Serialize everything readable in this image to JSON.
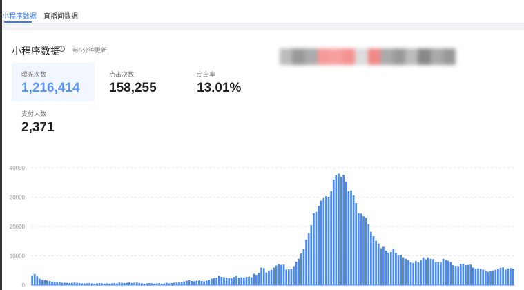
{
  "tabs": [
    {
      "label": "小程序数据",
      "active": true
    },
    {
      "label": "直播间数据",
      "active": false
    }
  ],
  "section": {
    "title": "小程序数据",
    "info_icon": "info-circle-icon",
    "subtitle": "每5分钟更新"
  },
  "metrics": [
    {
      "label": "曝光次数",
      "value": "1,216,414",
      "selected": true
    },
    {
      "label": "点击次数",
      "value": "158,255"
    },
    {
      "label": "点击率",
      "value": "13.01%"
    },
    {
      "label": "支付人数",
      "value": "2,371"
    }
  ],
  "colors": {
    "accent": "#3a7bf0",
    "bar": "#4a8af0"
  },
  "chart_data": {
    "type": "bar",
    "ylim": [
      0,
      40000
    ],
    "yticks": [
      "0",
      "10000",
      "20000",
      "30000",
      "40000"
    ],
    "grid": true,
    "values": [
      3300,
      3800,
      3000,
      2200,
      1800,
      1700,
      1600,
      1400,
      1200,
      1100,
      1000,
      1200,
      800,
      800,
      800,
      700,
      800,
      900,
      800,
      700,
      600,
      600,
      600,
      700,
      600,
      500,
      600,
      700,
      600,
      500,
      600,
      500,
      600,
      700,
      600,
      900,
      800,
      700,
      800,
      900,
      700,
      800,
      900,
      700,
      600,
      500,
      600,
      700,
      600,
      500,
      600,
      700,
      500,
      600,
      800,
      600,
      700,
      800,
      900,
      1000,
      1100,
      1300,
      1500,
      1700,
      1400,
      1300,
      1500,
      1600,
      1400,
      1300,
      1500,
      1800,
      2200,
      2400,
      2600,
      3200,
      2800,
      2700,
      2600,
      2400,
      2300,
      2800,
      3300,
      2500,
      2700,
      2600,
      2800,
      2900,
      2700,
      3900,
      3500,
      4200,
      6000,
      5800,
      4300,
      5000,
      5200,
      6000,
      6700,
      7200,
      6900,
      7000,
      5300,
      5400,
      5500,
      6500,
      8000,
      9000,
      10800,
      12300,
      15500,
      17700,
      20500,
      24500,
      25000,
      27000,
      28800,
      29700,
      30300,
      30100,
      32000,
      36000,
      37500,
      38000,
      37000,
      37600,
      35300,
      32000,
      32300,
      30600,
      28000,
      24500,
      24400,
      23500,
      23000,
      20800,
      18200,
      16700,
      15100,
      14200,
      12600,
      13300,
      11800,
      11100,
      11300,
      12500,
      11000,
      10200,
      10300,
      9500,
      9000,
      8500,
      7800,
      7600,
      8200,
      7800,
      8500,
      9500,
      8800,
      9500,
      9000,
      8900,
      7800,
      7800,
      7700,
      9000,
      8600,
      8300,
      7900,
      6800,
      6600,
      6500,
      7200,
      7300,
      6800,
      6900,
      7000,
      6000,
      5600,
      5700,
      5600,
      5300,
      5000,
      4500,
      4900,
      5000,
      5200,
      5500,
      5900,
      6100,
      5300,
      5700,
      5800,
      5600
    ]
  }
}
